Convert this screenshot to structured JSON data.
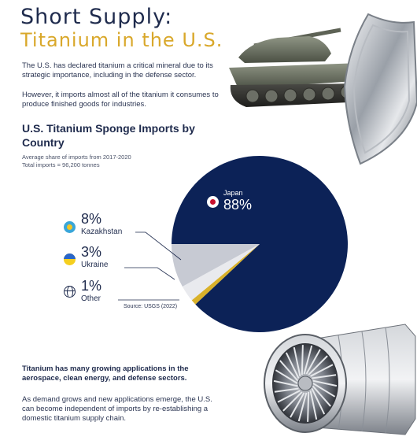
{
  "header": {
    "title_line1": "Short Supply:",
    "title_line2": "Titanium in the U.S."
  },
  "intro": {
    "p1": "The U.S. has declared titanium a critical mineral due to its strategic importance, including in the defense sector.",
    "p2": "However, it imports almost all of the titanium it consumes to produce finished goods for industries."
  },
  "chart_data": {
    "type": "pie",
    "title": "U.S. Titanium Sponge Imports by Country",
    "subtitle_line1": "Average share of imports from 2017-2020",
    "subtitle_line2": "Total imports = 96,200 tonnes",
    "series": [
      {
        "name": "Japan",
        "value": 88,
        "label": "88%",
        "color": "#0c2257",
        "icon": "japan-flag-icon"
      },
      {
        "name": "Kazakhstan",
        "value": 8,
        "label": "8%",
        "color": "#c7cad3",
        "icon": "kazakhstan-flag-icon"
      },
      {
        "name": "Ukraine",
        "value": 3,
        "label": "3%",
        "color": "#e9eaee",
        "icon": "ukraine-flag-icon"
      },
      {
        "name": "Other",
        "value": 1,
        "label": "1%",
        "color": "#d9b12a",
        "icon": "globe-icon"
      }
    ],
    "source": "Source: USGS (2022)"
  },
  "footer": {
    "bold_text": "Titanium has many growing applications in the aerospace, clean energy, and defense sectors.",
    "text": "As demand grows and new applications emerge, the U.S. can become independent of imports by re-establishing a domestic titanium supply chain."
  },
  "images": {
    "tank": "tank-illustration",
    "shield": "shield-illustration",
    "engine": "jet-engine-illustration"
  }
}
